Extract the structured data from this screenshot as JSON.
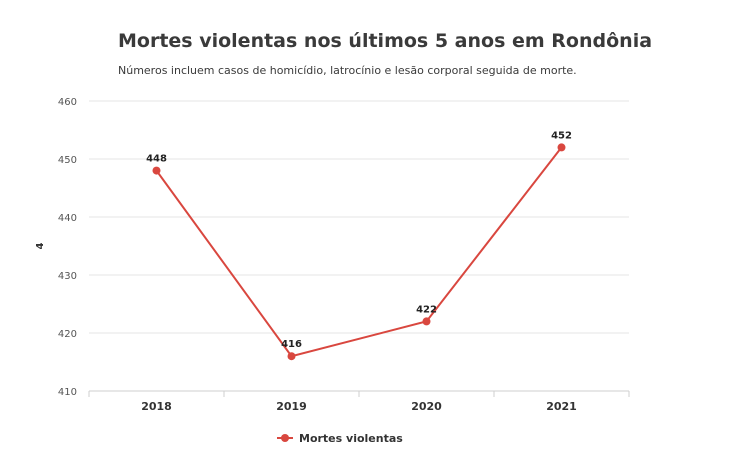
{
  "chart_data": {
    "type": "line",
    "title": "Mortes violentas nos últimos 5 anos em Rondônia",
    "subtitle": "Números incluem casos de homicídio, latrocínio e lesão corporal seguida de morte.",
    "xlabel": "",
    "ylabel": "4",
    "categories": [
      "2018",
      "2019",
      "2020",
      "2021"
    ],
    "series": [
      {
        "name": "Mortes violentas",
        "values": [
          448,
          416,
          422,
          452
        ],
        "color": "#d9473f"
      }
    ],
    "ylim": [
      410,
      460
    ],
    "yticks": [
      410,
      420,
      430,
      440,
      450,
      460
    ],
    "grid": true,
    "legend": "bottom-center"
  }
}
